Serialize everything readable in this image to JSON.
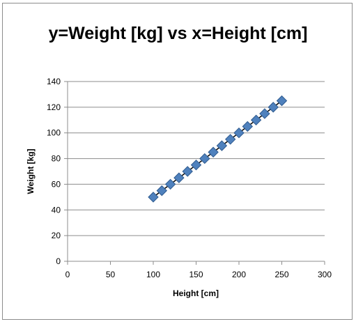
{
  "chart_data": {
    "type": "scatter",
    "title": "y=Weight [kg] vs x=Height [cm]",
    "xlabel": "Height [cm]",
    "ylabel": "Weight [kg]",
    "xlim": [
      0,
      300
    ],
    "ylim": [
      0,
      140
    ],
    "xticks": [
      0,
      50,
      100,
      150,
      200,
      250,
      300
    ],
    "yticks": [
      0,
      20,
      40,
      60,
      80,
      100,
      120,
      140
    ],
    "grid": "horizontal",
    "legend": "none",
    "marker": "diamond",
    "marker_color": "#4f81bd",
    "line_color": "#000000",
    "series": [
      {
        "x": [
          100,
          110,
          120,
          130,
          140,
          150,
          160,
          170,
          180,
          190,
          200,
          210,
          220,
          230,
          240,
          250
        ],
        "y": [
          50,
          55,
          60,
          65,
          70,
          75,
          80,
          85,
          90,
          95,
          100,
          105,
          110,
          115,
          120,
          125
        ]
      }
    ]
  }
}
